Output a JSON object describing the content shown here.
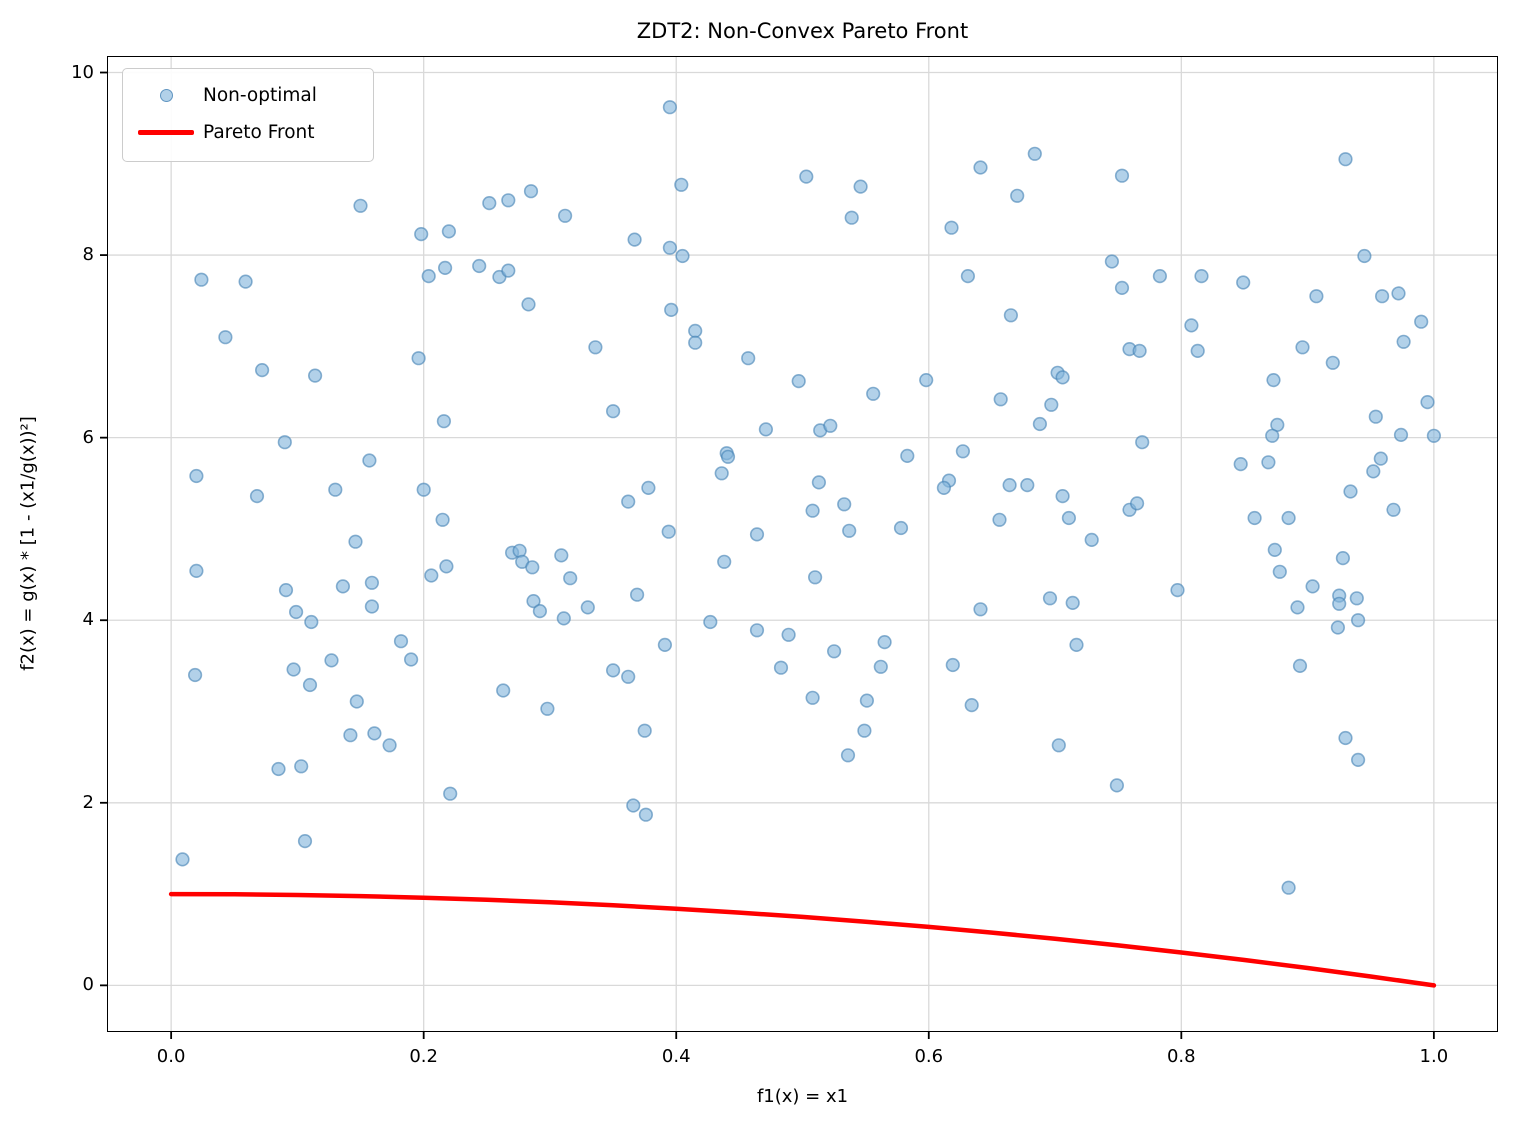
{
  "figure": {
    "background": "#ffffff"
  },
  "chart_data": {
    "type": "scatter",
    "title": "ZDT2: Non-Convex Pareto Front",
    "xlabel": "f1(x) = x1",
    "ylabel": "f2(x) = g(x) * [1 - (x1/g(x))²]",
    "xlim": [
      -0.05,
      1.05
    ],
    "ylim": [
      -0.5,
      10.17
    ],
    "xticks": [
      0.0,
      0.2,
      0.4,
      0.6,
      0.8,
      1.0
    ],
    "yticks": [
      0,
      2,
      4,
      6,
      8,
      10
    ],
    "xtick_labels": [
      "0.0",
      "0.2",
      "0.4",
      "0.6",
      "0.8",
      "1.0"
    ],
    "ytick_labels": [
      "0",
      "2",
      "4",
      "6",
      "8",
      "10"
    ],
    "grid": true,
    "grid_color": "#d9d9d9",
    "frame_color": "#000000",
    "legend": {
      "position": "upper left",
      "entries": [
        {
          "label": "Non-optimal",
          "type": "marker"
        },
        {
          "label": "Pareto Front",
          "type": "line"
        }
      ]
    },
    "series": [
      {
        "name": "Non-optimal",
        "type": "scatter",
        "marker_fill": "rgba(130,180,220,0.62)",
        "marker_edge": "rgba(70,130,180,0.62)",
        "marker_radius": 6.3,
        "points": [
          [
            0.15,
            8.54
          ],
          [
            0.252,
            8.57
          ],
          [
            0.267,
            8.6
          ],
          [
            0.285,
            8.7
          ],
          [
            0.312,
            8.43
          ],
          [
            0.198,
            8.23
          ],
          [
            0.22,
            8.26
          ],
          [
            0.204,
            7.77
          ],
          [
            0.217,
            7.86
          ],
          [
            0.244,
            7.88
          ],
          [
            0.26,
            7.76
          ],
          [
            0.267,
            7.83
          ],
          [
            0.024,
            7.73
          ],
          [
            0.059,
            7.71
          ],
          [
            0.283,
            7.46
          ],
          [
            0.043,
            7.1
          ],
          [
            0.196,
            6.87
          ],
          [
            0.072,
            6.74
          ],
          [
            0.114,
            6.68
          ],
          [
            0.216,
            6.18
          ],
          [
            0.09,
            5.95
          ],
          [
            0.157,
            5.75
          ],
          [
            0.02,
            5.58
          ],
          [
            0.13,
            5.43
          ],
          [
            0.068,
            5.36
          ],
          [
            0.2,
            5.43
          ],
          [
            0.215,
            5.1
          ],
          [
            0.146,
            4.86
          ],
          [
            0.395,
            9.62
          ],
          [
            0.404,
            8.77
          ],
          [
            0.503,
            8.86
          ],
          [
            0.546,
            8.75
          ],
          [
            0.539,
            8.41
          ],
          [
            0.367,
            8.17
          ],
          [
            0.395,
            8.08
          ],
          [
            0.405,
            7.99
          ],
          [
            0.641,
            8.96
          ],
          [
            0.684,
            9.11
          ],
          [
            0.67,
            8.65
          ],
          [
            0.618,
            8.3
          ],
          [
            0.631,
            7.77
          ],
          [
            0.396,
            7.4
          ],
          [
            0.415,
            7.17
          ],
          [
            0.415,
            7.04
          ],
          [
            0.336,
            6.99
          ],
          [
            0.457,
            6.87
          ],
          [
            0.665,
            7.34
          ],
          [
            0.497,
            6.62
          ],
          [
            0.556,
            6.48
          ],
          [
            0.598,
            6.63
          ],
          [
            0.657,
            6.42
          ],
          [
            0.35,
            6.29
          ],
          [
            0.471,
            6.09
          ],
          [
            0.514,
            6.08
          ],
          [
            0.522,
            6.13
          ],
          [
            0.44,
            5.83
          ],
          [
            0.441,
            5.79
          ],
          [
            0.436,
            5.61
          ],
          [
            0.513,
            5.51
          ],
          [
            0.616,
            5.53
          ],
          [
            0.612,
            5.45
          ],
          [
            0.583,
            5.8
          ],
          [
            0.627,
            5.85
          ],
          [
            0.378,
            5.45
          ],
          [
            0.362,
            5.3
          ],
          [
            0.508,
            5.2
          ],
          [
            0.533,
            5.27
          ],
          [
            0.394,
            4.97
          ],
          [
            0.464,
            4.94
          ],
          [
            0.537,
            4.98
          ],
          [
            0.578,
            5.01
          ],
          [
            0.656,
            5.1
          ],
          [
            0.664,
            5.48
          ],
          [
            0.678,
            5.48
          ],
          [
            0.753,
            8.87
          ],
          [
            0.93,
            9.05
          ],
          [
            0.745,
            7.93
          ],
          [
            0.783,
            7.77
          ],
          [
            0.753,
            7.64
          ],
          [
            0.816,
            7.77
          ],
          [
            0.849,
            7.7
          ],
          [
            0.945,
            7.99
          ],
          [
            0.907,
            7.55
          ],
          [
            0.959,
            7.55
          ],
          [
            0.972,
            7.58
          ],
          [
            0.99,
            7.27
          ],
          [
            0.808,
            7.23
          ],
          [
            0.976,
            7.05
          ],
          [
            0.759,
            6.97
          ],
          [
            0.767,
            6.95
          ],
          [
            0.813,
            6.95
          ],
          [
            0.896,
            6.99
          ],
          [
            0.92,
            6.82
          ],
          [
            0.873,
            6.63
          ],
          [
            0.702,
            6.71
          ],
          [
            0.706,
            6.66
          ],
          [
            0.697,
            6.36
          ],
          [
            0.688,
            6.15
          ],
          [
            0.995,
            6.39
          ],
          [
            0.954,
            6.23
          ],
          [
            0.974,
            6.03
          ],
          [
            1.0,
            6.02
          ],
          [
            0.876,
            6.14
          ],
          [
            0.872,
            6.02
          ],
          [
            0.769,
            5.95
          ],
          [
            0.847,
            5.71
          ],
          [
            0.869,
            5.73
          ],
          [
            0.958,
            5.77
          ],
          [
            0.952,
            5.63
          ],
          [
            0.934,
            5.41
          ],
          [
            0.706,
            5.36
          ],
          [
            0.711,
            5.12
          ],
          [
            0.759,
            5.21
          ],
          [
            0.765,
            5.28
          ],
          [
            0.858,
            5.12
          ],
          [
            0.885,
            5.12
          ],
          [
            0.968,
            5.21
          ],
          [
            0.729,
            4.88
          ],
          [
            0.27,
            4.74
          ],
          [
            0.276,
            4.76
          ],
          [
            0.278,
            4.64
          ],
          [
            0.286,
            4.58
          ],
          [
            0.309,
            4.71
          ],
          [
            0.316,
            4.46
          ],
          [
            0.02,
            4.54
          ],
          [
            0.206,
            4.49
          ],
          [
            0.218,
            4.59
          ],
          [
            0.091,
            4.33
          ],
          [
            0.136,
            4.37
          ],
          [
            0.159,
            4.41
          ],
          [
            0.159,
            4.15
          ],
          [
            0.099,
            4.09
          ],
          [
            0.111,
            3.98
          ],
          [
            0.287,
            4.21
          ],
          [
            0.292,
            4.1
          ],
          [
            0.311,
            4.02
          ],
          [
            0.182,
            3.77
          ],
          [
            0.19,
            3.57
          ],
          [
            0.127,
            3.56
          ],
          [
            0.019,
            3.4
          ],
          [
            0.097,
            3.46
          ],
          [
            0.11,
            3.29
          ],
          [
            0.147,
            3.11
          ],
          [
            0.263,
            3.23
          ],
          [
            0.298,
            3.03
          ],
          [
            0.142,
            2.74
          ],
          [
            0.161,
            2.76
          ],
          [
            0.173,
            2.63
          ],
          [
            0.085,
            2.37
          ],
          [
            0.103,
            2.4
          ],
          [
            0.221,
            2.1
          ],
          [
            0.106,
            1.58
          ],
          [
            0.009,
            1.38
          ],
          [
            0.438,
            4.64
          ],
          [
            0.33,
            4.14
          ],
          [
            0.369,
            4.28
          ],
          [
            0.51,
            4.47
          ],
          [
            0.641,
            4.12
          ],
          [
            0.427,
            3.98
          ],
          [
            0.464,
            3.89
          ],
          [
            0.489,
            3.84
          ],
          [
            0.391,
            3.73
          ],
          [
            0.525,
            3.66
          ],
          [
            0.565,
            3.76
          ],
          [
            0.35,
            3.45
          ],
          [
            0.362,
            3.38
          ],
          [
            0.483,
            3.48
          ],
          [
            0.562,
            3.49
          ],
          [
            0.619,
            3.51
          ],
          [
            0.508,
            3.15
          ],
          [
            0.551,
            3.12
          ],
          [
            0.634,
            3.07
          ],
          [
            0.375,
            2.79
          ],
          [
            0.549,
            2.79
          ],
          [
            0.536,
            2.52
          ],
          [
            0.366,
            1.97
          ],
          [
            0.376,
            1.87
          ],
          [
            0.874,
            4.77
          ],
          [
            0.928,
            4.68
          ],
          [
            0.878,
            4.53
          ],
          [
            0.904,
            4.37
          ],
          [
            0.797,
            4.33
          ],
          [
            0.696,
            4.24
          ],
          [
            0.714,
            4.19
          ],
          [
            0.892,
            4.14
          ],
          [
            0.925,
            4.27
          ],
          [
            0.925,
            4.18
          ],
          [
            0.939,
            4.24
          ],
          [
            0.924,
            3.92
          ],
          [
            0.94,
            4.0
          ],
          [
            0.717,
            3.73
          ],
          [
            0.894,
            3.5
          ],
          [
            0.93,
            2.71
          ],
          [
            0.703,
            2.63
          ],
          [
            0.94,
            2.47
          ],
          [
            0.749,
            2.19
          ],
          [
            0.885,
            1.07
          ]
        ]
      },
      {
        "name": "Pareto Front",
        "type": "line",
        "color": "#ff0000",
        "line_width": 4.5,
        "formula": "f2 = 1 - f1^2",
        "points": [
          [
            0.0,
            1.0
          ],
          [
            0.05,
            0.9975
          ],
          [
            0.1,
            0.99
          ],
          [
            0.15,
            0.9775
          ],
          [
            0.2,
            0.96
          ],
          [
            0.25,
            0.9375
          ],
          [
            0.3,
            0.91
          ],
          [
            0.35,
            0.8775
          ],
          [
            0.4,
            0.84
          ],
          [
            0.45,
            0.7975
          ],
          [
            0.5,
            0.75
          ],
          [
            0.55,
            0.6975
          ],
          [
            0.6,
            0.64
          ],
          [
            0.65,
            0.5775
          ],
          [
            0.7,
            0.51
          ],
          [
            0.75,
            0.4375
          ],
          [
            0.8,
            0.36
          ],
          [
            0.85,
            0.2775
          ],
          [
            0.9,
            0.19
          ],
          [
            0.95,
            0.0975
          ],
          [
            1.0,
            0.0
          ]
        ]
      }
    ]
  }
}
